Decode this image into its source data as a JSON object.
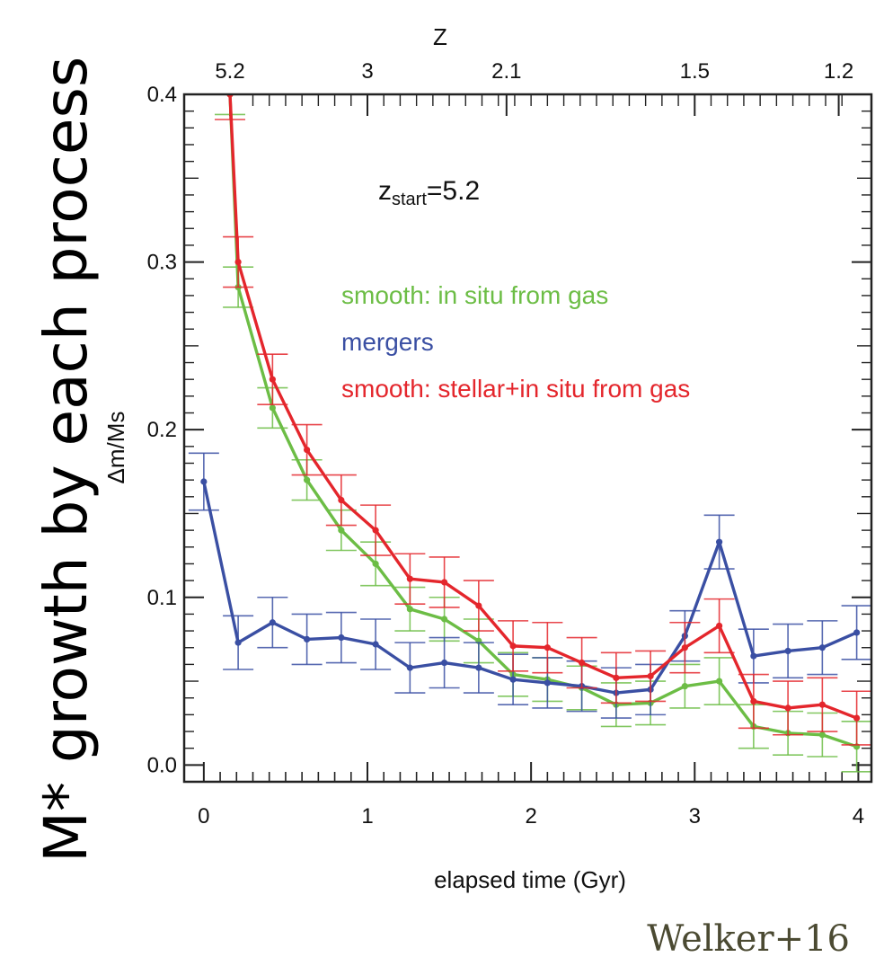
{
  "figure": {
    "outer_ylabel": "M* growth by each process",
    "citation": "Welker+16"
  },
  "chart_data": {
    "type": "line",
    "xlabel": "elapsed time (Gyr)",
    "ylabel": "Δm/Ms",
    "top_axis_label": "Z",
    "xlim": [
      -0.12,
      4.08
    ],
    "ylim": [
      -0.01,
      0.4
    ],
    "x_ticks": [
      0,
      1,
      2,
      3,
      4
    ],
    "y_ticks": [
      0.0,
      0.1,
      0.2,
      0.3,
      0.4
    ],
    "y_tick_labels": [
      "0.0",
      "0.1",
      "0.2",
      "0.3",
      "0.4"
    ],
    "top_ticks": [
      {
        "x": 0.16,
        "label": "5.2"
      },
      {
        "x": 1.0,
        "label": "3"
      },
      {
        "x": 1.85,
        "label": "2.1"
      },
      {
        "x": 3.0,
        "label": "1.5"
      },
      {
        "x": 3.88,
        "label": "1.2"
      }
    ],
    "annotation": {
      "base": "z",
      "sub": "start",
      "rest": "=5.2"
    },
    "grid": false,
    "legend_position": "upper-right",
    "x": [
      0,
      0.21,
      0.42,
      0.63,
      0.84,
      1.05,
      1.26,
      1.47,
      1.68,
      1.89,
      2.1,
      2.31,
      2.52,
      2.73,
      2.94,
      3.15,
      3.36,
      3.57,
      3.78,
      3.99
    ],
    "series": [
      {
        "name": "smooth: in situ from gas",
        "color": "#6cbd45",
        "x": [
          0.16,
          0.21,
          0.42,
          0.63,
          0.84,
          1.05,
          1.26,
          1.47,
          1.68,
          1.89,
          2.1,
          2.31,
          2.52,
          2.73,
          2.94,
          3.15,
          3.36,
          3.57,
          3.78,
          3.99
        ],
        "values": [
          0.4,
          0.285,
          0.213,
          0.17,
          0.14,
          0.12,
          0.093,
          0.087,
          0.074,
          0.054,
          0.051,
          0.046,
          0.036,
          0.037,
          0.047,
          0.05,
          0.023,
          0.019,
          0.018,
          0.011
        ],
        "errors": [
          0.012,
          0.012,
          0.012,
          0.012,
          0.012,
          0.013,
          0.013,
          0.013,
          0.013,
          0.013,
          0.013,
          0.013,
          0.013,
          0.013,
          0.013,
          0.014,
          0.013,
          0.013,
          0.013,
          0.015
        ]
      },
      {
        "name": "mergers",
        "color": "#3a4fa3",
        "x": [
          0,
          0.21,
          0.42,
          0.63,
          0.84,
          1.05,
          1.26,
          1.47,
          1.68,
          1.89,
          2.1,
          2.31,
          2.52,
          2.73,
          2.94,
          3.15,
          3.36,
          3.57,
          3.78,
          3.99
        ],
        "values": [
          0.169,
          0.073,
          0.085,
          0.075,
          0.076,
          0.072,
          0.058,
          0.061,
          0.058,
          0.051,
          0.049,
          0.047,
          0.043,
          0.045,
          0.077,
          0.133,
          0.065,
          0.068,
          0.07,
          0.079
        ],
        "errors": [
          0.017,
          0.016,
          0.015,
          0.015,
          0.015,
          0.015,
          0.015,
          0.015,
          0.015,
          0.015,
          0.015,
          0.015,
          0.015,
          0.015,
          0.015,
          0.016,
          0.016,
          0.016,
          0.016,
          0.016
        ]
      },
      {
        "name": "smooth: stellar+in situ from gas",
        "color": "#e4262c",
        "x": [
          0.16,
          0.21,
          0.42,
          0.63,
          0.84,
          1.05,
          1.26,
          1.47,
          1.68,
          1.89,
          2.1,
          2.31,
          2.52,
          2.73,
          2.94,
          3.15,
          3.36,
          3.57,
          3.78,
          3.99
        ],
        "values": [
          0.4,
          0.3,
          0.23,
          0.188,
          0.158,
          0.14,
          0.111,
          0.109,
          0.095,
          0.071,
          0.07,
          0.061,
          0.052,
          0.053,
          0.07,
          0.083,
          0.038,
          0.034,
          0.036,
          0.028
        ],
        "errors": [
          0.015,
          0.015,
          0.015,
          0.015,
          0.015,
          0.015,
          0.015,
          0.015,
          0.015,
          0.015,
          0.015,
          0.015,
          0.015,
          0.015,
          0.015,
          0.016,
          0.016,
          0.016,
          0.016,
          0.016
        ]
      }
    ]
  }
}
